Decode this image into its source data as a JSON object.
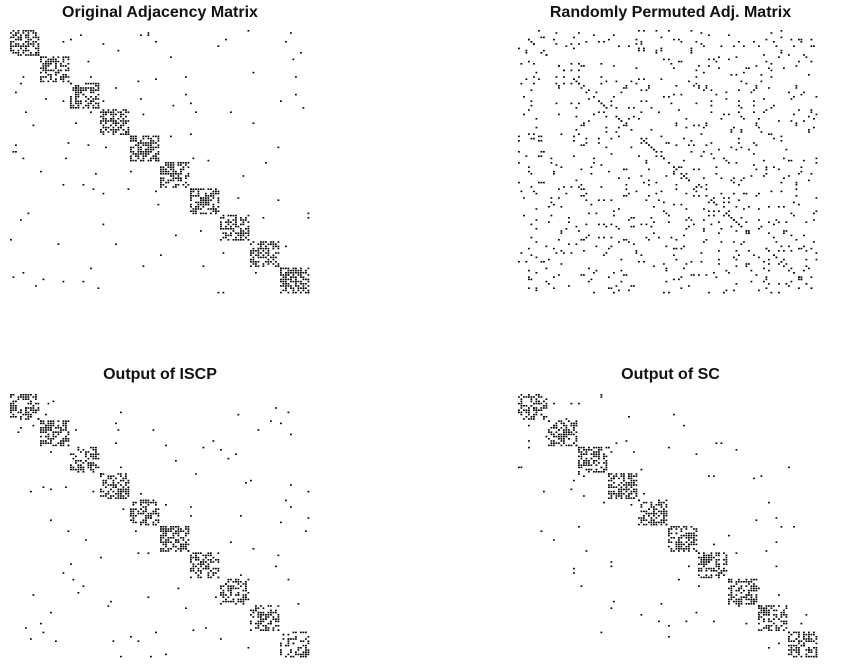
{
  "chart_data": [
    {
      "type": "scatter",
      "plot_kind": "sparsity-pattern",
      "title": "Original Adjacency Matrix",
      "block_structure": "block-diagonal",
      "n_blocks": 10,
      "blocks_ordered": true,
      "block_density": 0.55,
      "background_density": 0.007,
      "axes_visible": false,
      "grid": false,
      "mark_color": "#000000"
    },
    {
      "type": "scatter",
      "plot_kind": "sparsity-pattern",
      "title": "Randomly Permuted Adj. Matrix",
      "block_structure": "randomly permuted",
      "n_blocks": 10,
      "blocks_ordered": false,
      "block_density": 0.55,
      "background_density": 0.007,
      "axes_visible": false,
      "grid": false,
      "mark_color": "#000000"
    },
    {
      "type": "scatter",
      "plot_kind": "sparsity-pattern",
      "title": "Output of ISCP",
      "block_structure": "block-diagonal",
      "n_blocks": 10,
      "blocks_ordered": true,
      "block_density": 0.5,
      "background_density": 0.007,
      "axes_visible": false,
      "grid": false,
      "mark_color": "#000000"
    },
    {
      "type": "scatter",
      "plot_kind": "sparsity-pattern",
      "title": "Output of SC",
      "block_structure": "block-diagonal",
      "n_blocks": 10,
      "blocks_ordered": true,
      "block_density": 0.55,
      "background_density": 0.007,
      "axes_visible": false,
      "grid": false,
      "mark_color": "#000000"
    }
  ]
}
